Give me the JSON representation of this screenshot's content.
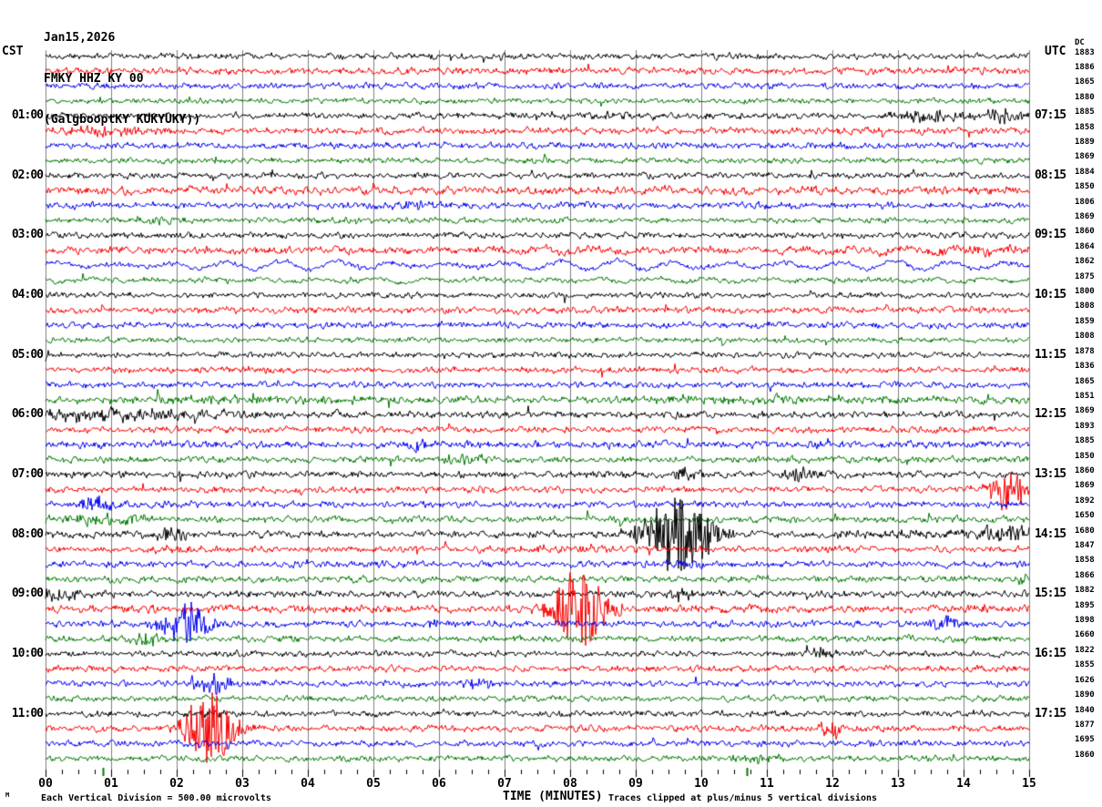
{
  "header": {
    "date_line": "Jan15,2026",
    "station_line": "FMKY HHZ KY 00",
    "location_line": "(GalgbooptKY KUKYUKY))"
  },
  "axes": {
    "left_header": "CST",
    "right_header": "UTC",
    "dc_header": "DC",
    "x_title": "TIME (MINUTES)",
    "cst_times": [
      "01:00",
      "02:00",
      "03:00",
      "04:00",
      "05:00",
      "06:00",
      "07:00",
      "08:00",
      "09:00",
      "10:00",
      "11:00"
    ],
    "utc_times": [
      "07:15",
      "08:15",
      "09:15",
      "10:15",
      "11:15",
      "12:15",
      "13:15",
      "14:15",
      "15:15",
      "16:15",
      "17:15"
    ],
    "minute_labels": [
      "00",
      "01",
      "02",
      "03",
      "04",
      "05",
      "06",
      "07",
      "08",
      "09",
      "10",
      "11",
      "12",
      "13",
      "14",
      "15"
    ],
    "green_marker_minutes": [
      0.875,
      10.7
    ]
  },
  "footer": {
    "scale_text": "Each Vertical Division =  500.00 microvolts",
    "clip_text": "Traces clipped at plus/minus 5 vertical divisions",
    "corner_glyph": "M"
  },
  "colors": {
    "trace_cycle": [
      "#000000",
      "#f80000",
      "#0000f0",
      "#007800"
    ],
    "grid": "#808080",
    "tick": "#000000",
    "green_marker": "#007800",
    "text": "#000000"
  },
  "chart_data": {
    "type": "line",
    "title": "Helicorder seismogram FMKY HHZ KY 00, Jan15,2026",
    "xlabel": "TIME (MINUTES)",
    "x_range": [
      0,
      15
    ],
    "rows_per_hour": 4,
    "volts_per_division": "500.00 microvolts",
    "clip_rule": "plus/minus 5 vertical divisions",
    "events_format": "[minute, peak_amplitude_px, width_minutes]",
    "lp_format": "[amplitude_px, period_minutes, ramp_start_minute] long-period swell",
    "rows": [
      {
        "dc": 1883,
        "na": 1.8
      },
      {
        "dc": 1886,
        "na": 2.0
      },
      {
        "dc": 1865,
        "na": 1.8
      },
      {
        "dc": 1880,
        "na": 1.6
      },
      {
        "dc": 1885,
        "na": 1.8,
        "ev": [
          [
            8.3,
            2.5,
            2.5
          ],
          [
            13.6,
            5,
            1.0
          ],
          [
            14.65,
            8,
            0.45
          ]
        ]
      },
      {
        "dc": 1858,
        "na": 2.0,
        "ev": [
          [
            0.9,
            4.5,
            1.2
          ]
        ]
      },
      {
        "dc": 1889,
        "na": 1.9
      },
      {
        "dc": 1869,
        "na": 1.6
      },
      {
        "dc": 1884,
        "na": 1.8
      },
      {
        "dc": 1850,
        "na": 2.4,
        "lp": [
          1.2,
          0.75,
          6
        ]
      },
      {
        "dc": 1806,
        "na": 2.0,
        "ev": [
          [
            5.6,
            3.5,
            0.7
          ]
        ]
      },
      {
        "dc": 1869,
        "na": 1.7,
        "ev": [
          [
            1.8,
            3,
            0.7
          ]
        ]
      },
      {
        "dc": 1860,
        "na": 1.8
      },
      {
        "dc": 1864,
        "na": 2.2,
        "lp": [
          2.5,
          0.8,
          6
        ],
        "ev": [
          [
            14.3,
            4,
            1.5
          ]
        ]
      },
      {
        "dc": 1862,
        "na": 1.6,
        "lp": [
          5,
          0.85,
          0
        ]
      },
      {
        "dc": 1875,
        "na": 1.5,
        "lp": [
          2,
          0.85,
          0
        ]
      },
      {
        "dc": 1800,
        "na": 1.7
      },
      {
        "dc": 1808,
        "na": 2.0
      },
      {
        "dc": 1859,
        "na": 1.9
      },
      {
        "dc": 1808,
        "na": 1.6
      },
      {
        "dc": 1878,
        "na": 1.7
      },
      {
        "dc": 1836,
        "na": 1.8
      },
      {
        "dc": 1865,
        "na": 1.8
      },
      {
        "dc": 1851,
        "na": 2.2,
        "ev": [
          [
            3,
            2.5,
            3
          ],
          [
            11,
            2.5,
            4
          ]
        ]
      },
      {
        "dc": 1869,
        "na": 2.0,
        "ev": [
          [
            0.6,
            6,
            1.6
          ],
          [
            2.0,
            4,
            1.2
          ]
        ]
      },
      {
        "dc": 1893,
        "na": 1.9
      },
      {
        "dc": 1885,
        "na": 2.1,
        "ev": [
          [
            5.68,
            7,
            0.3
          ]
        ]
      },
      {
        "dc": 1850,
        "na": 1.9,
        "ev": [
          [
            6.35,
            4,
            0.8
          ]
        ]
      },
      {
        "dc": 1860,
        "na": 2.0,
        "ev": [
          [
            9.7,
            6,
            0.35
          ],
          [
            11.5,
            7,
            0.35
          ]
        ]
      },
      {
        "dc": 1869,
        "na": 1.9,
        "ev": [
          [
            14.68,
            22,
            0.4
          ]
        ]
      },
      {
        "dc": 1892,
        "na": 1.9,
        "ev": [
          [
            0.78,
            8,
            0.45
          ]
        ]
      },
      {
        "dc": 1650,
        "na": 1.9,
        "ev": [
          [
            0.9,
            7,
            0.9
          ]
        ]
      },
      {
        "dc": 1680,
        "na": 2.1,
        "ev": [
          [
            1.9,
            7,
            0.5
          ],
          [
            9.65,
            45,
            0.7
          ],
          [
            13.2,
            3,
            1.5
          ],
          [
            14.7,
            8,
            0.9
          ]
        ]
      },
      {
        "dc": 1847,
        "na": 1.9,
        "ev": [
          [
            1.9,
            5,
            0.4
          ],
          [
            8.0,
            3,
            1.0
          ]
        ]
      },
      {
        "dc": 1858,
        "na": 1.9,
        "ev": [
          [
            9.7,
            4,
            0.4
          ]
        ]
      },
      {
        "dc": 1866,
        "na": 1.9,
        "ev": [
          [
            14.95,
            6,
            0.3
          ]
        ]
      },
      {
        "dc": 1882,
        "na": 2.0,
        "ev": [
          [
            0.15,
            6,
            0.7
          ],
          [
            9.7,
            6,
            0.3
          ]
        ]
      },
      {
        "dc": 1895,
        "na": 2.3,
        "lp": [
          1.2,
          0.7,
          8
        ],
        "ev": [
          [
            8.15,
            45,
            0.55
          ]
        ]
      },
      {
        "dc": 1898,
        "na": 1.9,
        "ev": [
          [
            2.15,
            25,
            0.5
          ],
          [
            5.95,
            5,
            0.25
          ],
          [
            13.75,
            7,
            0.4
          ]
        ]
      },
      {
        "dc": 1660,
        "na": 1.9,
        "ev": [
          [
            1.6,
            7,
            0.4
          ]
        ]
      },
      {
        "dc": 1822,
        "na": 1.8,
        "ev": [
          [
            11.87,
            6,
            0.3
          ]
        ]
      },
      {
        "dc": 1855,
        "na": 1.9
      },
      {
        "dc": 1626,
        "na": 1.8,
        "ev": [
          [
            2.43,
            9,
            0.35
          ],
          [
            2.64,
            7,
            0.3
          ],
          [
            6.57,
            7,
            0.25
          ]
        ]
      },
      {
        "dc": 1890,
        "na": 1.7
      },
      {
        "dc": 1840,
        "na": 1.8,
        "ev": [
          [
            2.5,
            4,
            0.4
          ]
        ]
      },
      {
        "dc": 1877,
        "na": 1.9,
        "ev": [
          [
            2.5,
            45,
            0.5
          ],
          [
            12.0,
            10,
            0.3
          ]
        ]
      },
      {
        "dc": 1695,
        "na": 1.8
      },
      {
        "dc": 1860,
        "na": 1.7,
        "ev": [
          [
            10.85,
            4,
            0.5
          ]
        ]
      }
    ]
  }
}
